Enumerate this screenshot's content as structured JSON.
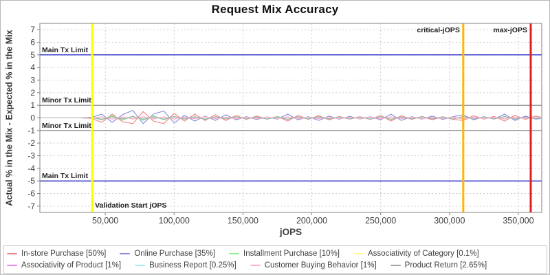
{
  "title": "Request Mix Accuracy",
  "chart_data": {
    "type": "line",
    "title": "Request Mix Accuracy",
    "xlabel": "jOPS",
    "ylabel": "Actual % in the Mix - Expected % in the Mix",
    "xlim": [
      2500,
      367000
    ],
    "ylim": [
      -7.5,
      7.5
    ],
    "grid": true,
    "legend_position": "bottom",
    "x_ticks": [
      50000,
      100000,
      150000,
      200000,
      250000,
      300000,
      350000
    ],
    "x_tick_labels": [
      "50,000",
      "100,000",
      "150,000",
      "200,000",
      "250,000",
      "300,000",
      "350,000"
    ],
    "y_ticks": [
      -7,
      -6,
      -5,
      -4,
      -3,
      -2,
      -1,
      0,
      1,
      2,
      3,
      4,
      5,
      6,
      7
    ],
    "h_markers": [
      {
        "value": 5,
        "color": "#0000c0",
        "label": "Main Tx Limit"
      },
      {
        "value": 1,
        "color": "#808080",
        "label": "Minor Tx Limit"
      },
      {
        "value": -1,
        "color": "#808080",
        "label": "Minor Tx Limit"
      },
      {
        "value": -5,
        "color": "#0000c0",
        "label": "Main Tx Limit"
      }
    ],
    "v_markers": [
      {
        "value": 40500,
        "color": "#ffff00",
        "label": "Validation Start jOPS",
        "label_pos": "bottom-right",
        "width": 3
      },
      {
        "value": 310000,
        "color": "#ffb400",
        "label": "critical-jOPS",
        "label_pos": "top-left",
        "width": 3
      },
      {
        "value": 359000,
        "color": "#e02020",
        "label": "max-jOPS",
        "label_pos": "top-left",
        "width": 3
      }
    ],
    "x": [
      2500,
      10000,
      17500,
      25000,
      32500,
      40000,
      47500,
      55000,
      62500,
      70000,
      77500,
      85000,
      92500,
      100000,
      107500,
      115000,
      122500,
      130000,
      137500,
      145000,
      152500,
      160000,
      167500,
      175000,
      182500,
      190000,
      197500,
      205000,
      212500,
      220000,
      227500,
      235000,
      242500,
      250000,
      257500,
      265000,
      272500,
      280000,
      287500,
      295000,
      302500,
      310000,
      317500,
      325000,
      332500,
      340000,
      347500,
      355000,
      362500,
      366500
    ],
    "series": [
      {
        "name": "In-store Purchase [50%]",
        "color": "#f08080",
        "values": [
          0,
          0,
          0,
          0,
          0,
          -0.05,
          -0.35,
          0.3,
          -0.3,
          -0.45,
          0.5,
          -0.25,
          -0.45,
          0.35,
          -0.25,
          0.3,
          -0.2,
          0.25,
          -0.2,
          0.2,
          -0.12,
          0.15,
          -0.1,
          0.12,
          -0.25,
          0.2,
          -0.12,
          0.18,
          -0.15,
          0.12,
          -0.1,
          0.1,
          -0.12,
          0.2,
          -0.25,
          0.18,
          -0.12,
          0.12,
          -0.15,
          0.1,
          -0.12,
          -0.2,
          0.18,
          -0.1,
          0.12,
          -0.25,
          0.22,
          -0.12,
          0.15,
          0.05
        ]
      },
      {
        "name": "Online Purchase [35%]",
        "color": "#8888dd",
        "values": [
          0,
          0,
          0,
          0,
          0,
          0.05,
          0.3,
          -0.35,
          0.25,
          0.6,
          -0.45,
          0.3,
          0.55,
          -0.4,
          0.2,
          -0.25,
          0.15,
          -0.2,
          0.25,
          -0.15,
          0.1,
          -0.12,
          0.08,
          -0.1,
          0.3,
          -0.15,
          0.1,
          -0.2,
          0.15,
          -0.1,
          0.12,
          -0.08,
          0.1,
          -0.15,
          0.3,
          -0.2,
          0.1,
          -0.1,
          0.15,
          -0.12,
          0.1,
          0.25,
          -0.15,
          0.1,
          -0.1,
          0.3,
          -0.2,
          0.15,
          -0.1,
          -0.05
        ]
      },
      {
        "name": "Installment Purchase [10%]",
        "color": "#90ee90",
        "values": [
          0,
          0,
          0,
          0,
          0,
          0.03,
          -0.15,
          0.2,
          -0.18,
          0.15,
          -0.2,
          0.18,
          -0.15,
          0.12,
          -0.1,
          0.1,
          -0.12,
          0.1,
          -0.08,
          0.08,
          -0.06,
          0.08,
          -0.1,
          0.12,
          -0.08,
          0.06,
          -0.08,
          0.1,
          -0.06,
          0.08,
          -0.05,
          0.06,
          -0.08,
          0.1,
          -0.12,
          0.08,
          -0.06,
          0.08,
          -0.05,
          0.06,
          -0.08,
          0.1,
          -0.08,
          0.06,
          -0.05,
          0.08,
          -0.1,
          0.06,
          -0.05,
          0.02
        ]
      },
      {
        "name": "Associativity of Category [0.1%]",
        "color": "#ffff99",
        "values": [
          0,
          0,
          0,
          0,
          0,
          0.02,
          -0.03,
          0.03,
          -0.02,
          0.03,
          -0.03,
          0.02,
          -0.03,
          0.03,
          -0.02,
          0.02,
          -0.03,
          0.02,
          -0.02,
          0.03,
          -0.02,
          0.02,
          -0.02,
          0.02,
          -0.03,
          0.02,
          -0.02,
          0.03,
          -0.02,
          0.02,
          -0.02,
          0.02,
          -0.03,
          0.02,
          -0.02,
          0.03,
          -0.02,
          0.02,
          -0.02,
          0.02,
          -0.03,
          0.03,
          -0.02,
          0.02,
          -0.02,
          0.03,
          -0.02,
          0.02,
          -0.02,
          0.01
        ]
      },
      {
        "name": "Associativity of Product [1%]",
        "color": "#ee82ee",
        "values": [
          0,
          0,
          0,
          0,
          0,
          -0.03,
          0.08,
          -0.08,
          0.06,
          -0.08,
          0.08,
          -0.06,
          0.08,
          -0.08,
          0.06,
          -0.06,
          0.08,
          -0.06,
          0.05,
          -0.06,
          0.05,
          -0.05,
          0.06,
          -0.05,
          0.08,
          -0.06,
          0.05,
          -0.06,
          0.06,
          -0.05,
          0.05,
          -0.05,
          0.06,
          -0.06,
          0.08,
          -0.05,
          0.05,
          -0.06,
          0.05,
          -0.05,
          0.06,
          -0.08,
          0.06,
          -0.05,
          0.05,
          -0.08,
          0.06,
          -0.05,
          0.05,
          0.02
        ]
      },
      {
        "name": "Business Report [0.25%]",
        "color": "#aaeeee",
        "values": [
          0,
          0,
          0,
          0,
          0,
          0.02,
          -0.06,
          0.06,
          -0.05,
          0.06,
          -0.06,
          0.05,
          -0.06,
          0.06,
          -0.05,
          0.05,
          -0.06,
          0.05,
          -0.04,
          0.05,
          -0.04,
          0.04,
          -0.05,
          0.04,
          -0.06,
          0.05,
          -0.04,
          0.05,
          -0.05,
          0.04,
          -0.04,
          0.04,
          -0.05,
          0.05,
          -0.06,
          0.04,
          -0.04,
          0.05,
          -0.04,
          0.04,
          -0.05,
          0.06,
          -0.05,
          0.04,
          -0.04,
          0.06,
          -0.05,
          0.04,
          -0.04,
          -0.02
        ]
      },
      {
        "name": "Customer Buying Behavior [1%]",
        "color": "#ffb6c1",
        "values": [
          0,
          0,
          0,
          0,
          0,
          -0.04,
          0.1,
          -0.1,
          0.08,
          -0.1,
          0.1,
          -0.08,
          0.1,
          -0.1,
          0.08,
          -0.08,
          0.1,
          -0.08,
          0.06,
          -0.08,
          0.06,
          -0.06,
          0.08,
          -0.06,
          0.1,
          -0.08,
          0.06,
          -0.08,
          0.08,
          -0.06,
          0.06,
          -0.06,
          0.08,
          -0.08,
          0.1,
          -0.06,
          0.06,
          -0.08,
          0.06,
          -0.06,
          0.08,
          -0.1,
          0.08,
          -0.06,
          0.06,
          -0.1,
          0.08,
          -0.06,
          0.06,
          0.03
        ]
      },
      {
        "name": "Product Return [2.65%]",
        "color": "#a8a8a8",
        "values": [
          0,
          0,
          0,
          0,
          0,
          0.04,
          -0.12,
          0.12,
          -0.1,
          0.12,
          -0.12,
          0.1,
          -0.12,
          0.12,
          -0.1,
          0.1,
          -0.12,
          0.1,
          -0.08,
          0.1,
          -0.08,
          0.08,
          -0.1,
          0.08,
          -0.12,
          0.1,
          -0.08,
          0.1,
          -0.1,
          0.08,
          -0.08,
          0.08,
          -0.1,
          0.1,
          -0.12,
          0.08,
          -0.08,
          0.1,
          -0.08,
          0.08,
          -0.1,
          0.12,
          -0.1,
          0.08,
          -0.08,
          0.12,
          -0.1,
          0.08,
          -0.08,
          0.04
        ]
      }
    ]
  }
}
